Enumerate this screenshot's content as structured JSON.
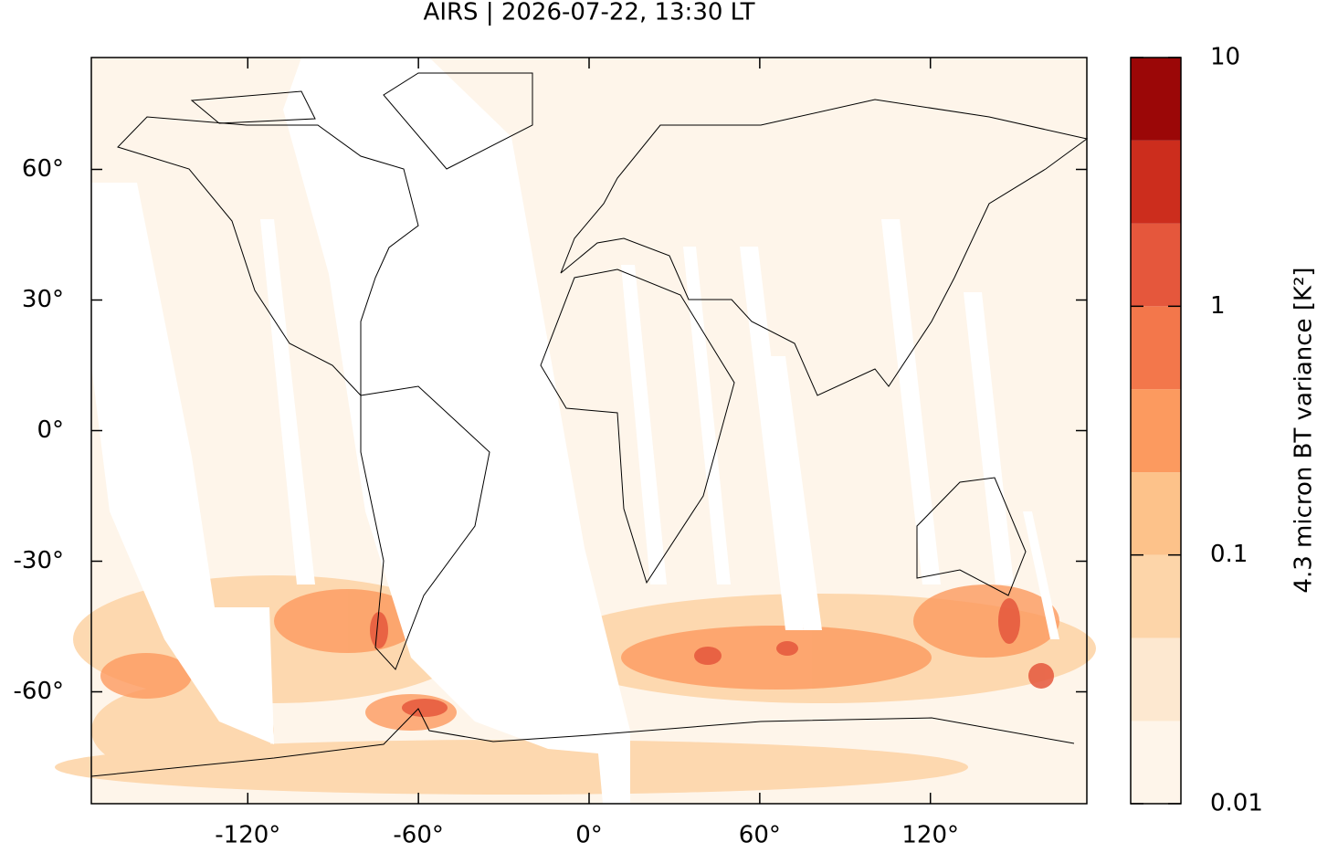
{
  "chart_data": {
    "type": "map",
    "title": "AIRS | 2026-07-22, 13:30 LT",
    "xlim": [
      -175,
      175
    ],
    "ylim": [
      -85.7,
      85.7
    ],
    "xticks": [
      {
        "value": -120,
        "label": "-120°"
      },
      {
        "value": -60,
        "label": "-60°"
      },
      {
        "value": 0,
        "label": "0°"
      },
      {
        "value": 60,
        "label": "60°"
      },
      {
        "value": 120,
        "label": "120°"
      }
    ],
    "yticks": [
      {
        "value": -60,
        "label": "-60°"
      },
      {
        "value": -30,
        "label": "-30°"
      },
      {
        "value": 0,
        "label": "0°"
      },
      {
        "value": 30,
        "label": "30°"
      },
      {
        "value": 60,
        "label": "60°"
      }
    ],
    "colorbar": {
      "label": "4.3 micron BT variance [K²]",
      "log": true,
      "lim": [
        0.01,
        10
      ],
      "ticks": [
        0.01,
        0.1,
        1,
        10
      ],
      "levels": [
        0.01,
        0.0215,
        0.0464,
        0.1,
        0.215,
        0.464,
        1,
        2.15,
        4.64,
        10
      ],
      "colors": [
        "#fef5ea",
        "#fde8d0",
        "#fdd5a9",
        "#fdc28a",
        "#fc9a5f",
        "#f3774b",
        "#e5573c",
        "#cc2d1d",
        "#9b0707"
      ]
    }
  }
}
